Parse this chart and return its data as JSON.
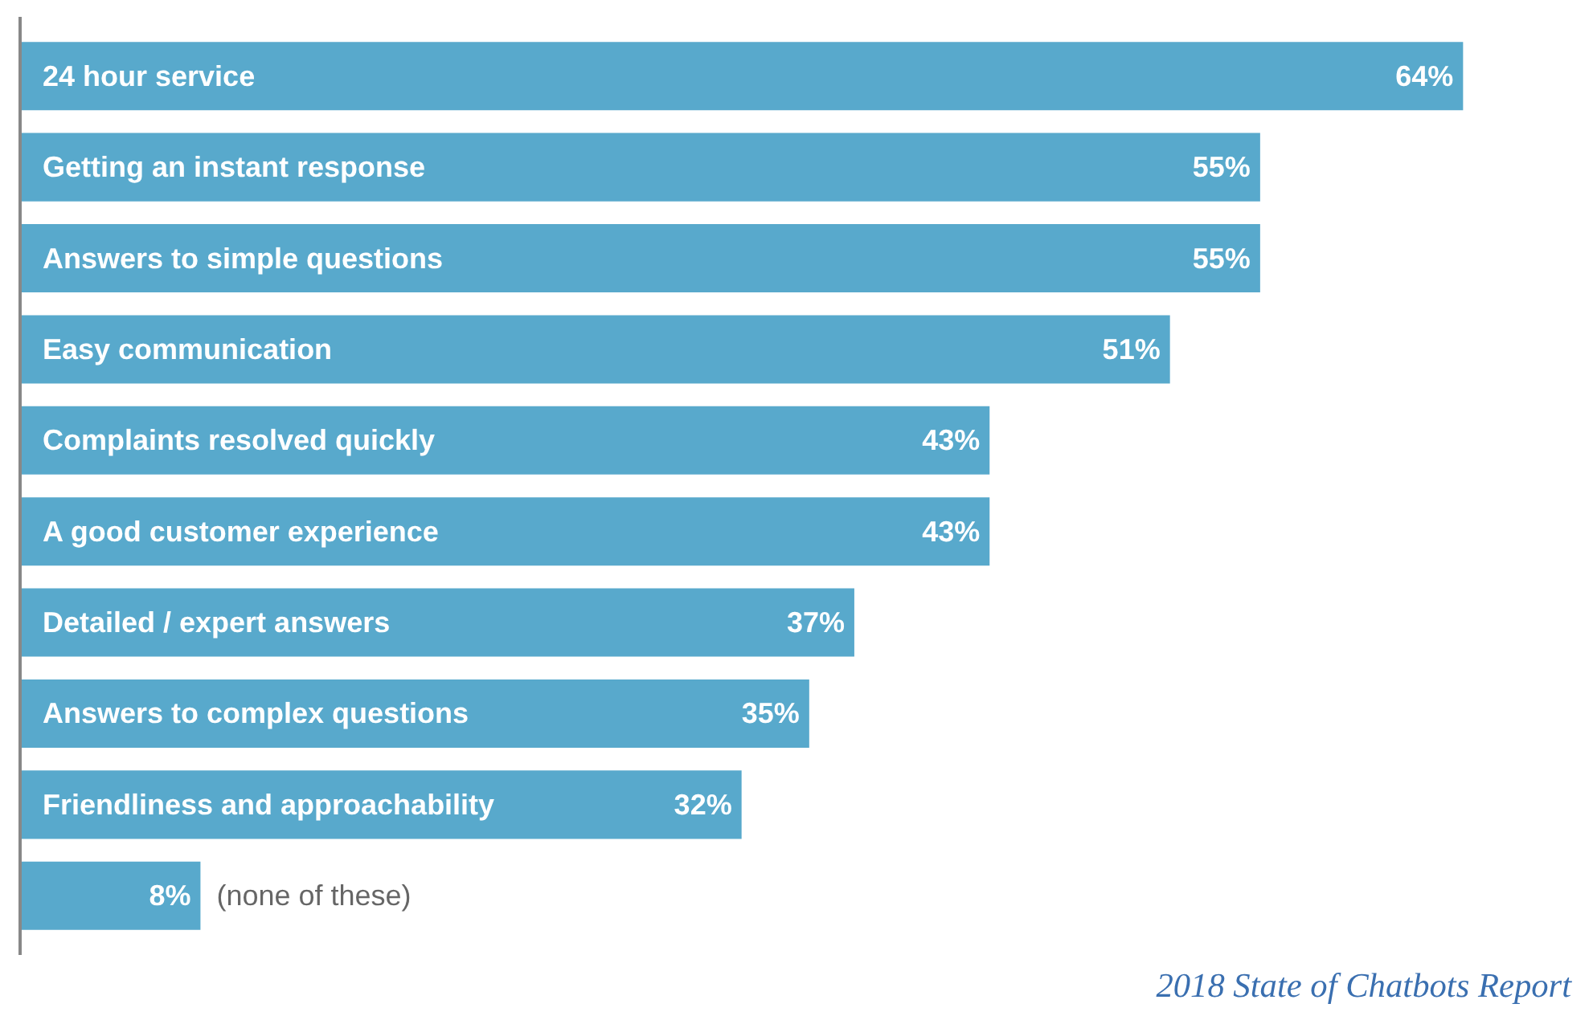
{
  "chart_data": {
    "type": "bar",
    "orientation": "horizontal",
    "categories": [
      "24 hour service",
      "Getting an instant response",
      "Answers to simple questions",
      "Easy communication",
      "Complaints resolved quickly",
      "A good customer experience",
      "Detailed / expert answers",
      "Answers to complex questions",
      "Friendliness and approachability",
      "(none of these)"
    ],
    "values": [
      64,
      55,
      55,
      51,
      43,
      43,
      37,
      35,
      32,
      8
    ],
    "value_labels": [
      "64%",
      "55%",
      "55%",
      "51%",
      "43%",
      "43%",
      "37%",
      "35%",
      "32%",
      "8%"
    ],
    "color": "#58a9cc",
    "annotations": [
      "2018 State of Chatbots Report"
    ],
    "grid": false
  }
}
